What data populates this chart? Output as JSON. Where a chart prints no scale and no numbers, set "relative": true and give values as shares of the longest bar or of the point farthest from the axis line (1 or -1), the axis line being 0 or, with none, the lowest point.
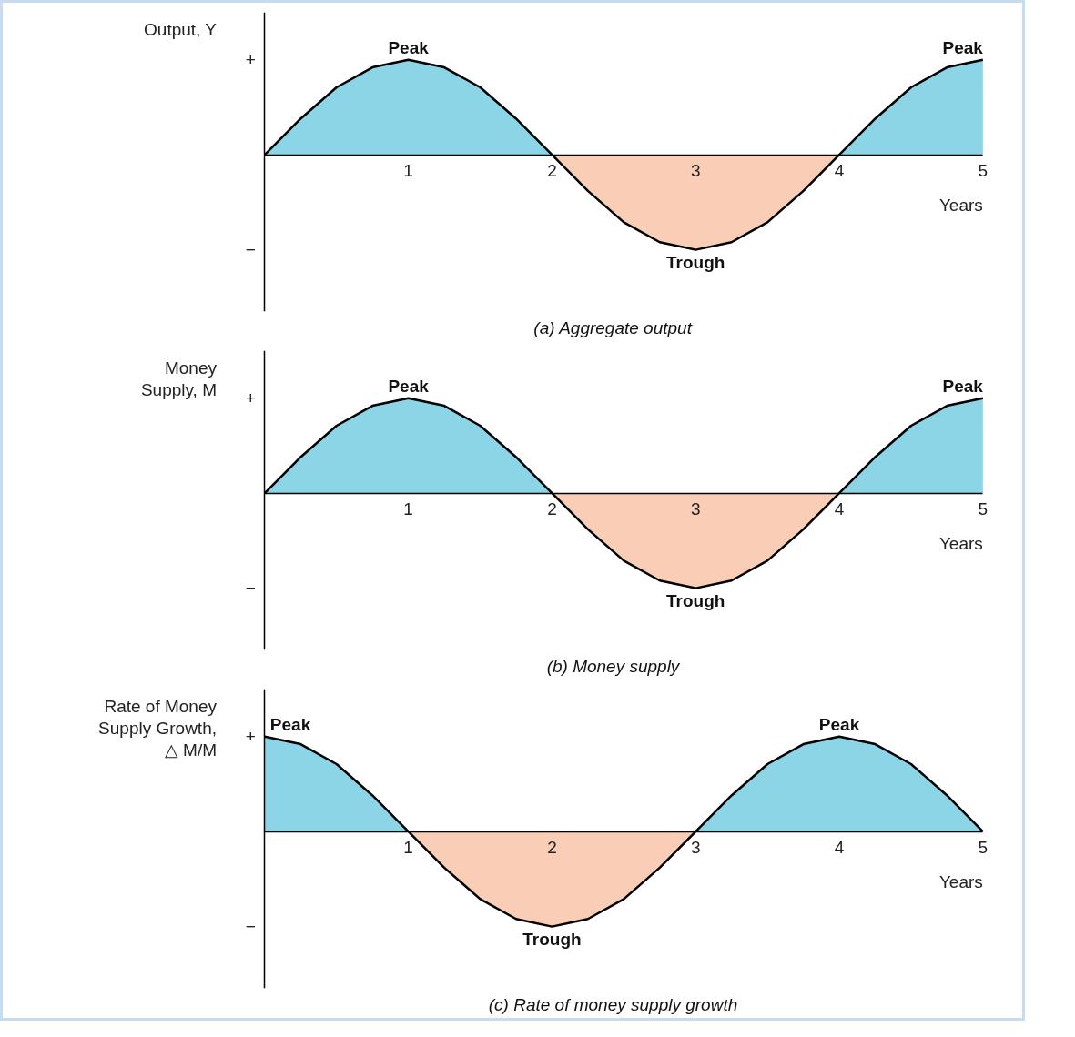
{
  "chart_data": [
    {
      "type": "area",
      "relative": true,
      "title": "(a) Aggregate output",
      "ylabel": "Output, Y",
      "xlabel": "Years",
      "x": [
        0,
        0.25,
        0.5,
        0.75,
        1,
        1.25,
        1.5,
        1.75,
        2,
        2.25,
        2.5,
        2.75,
        3,
        3.25,
        3.5,
        3.75,
        4,
        4.25,
        4.5,
        4.75,
        5
      ],
      "xlim": [
        0,
        5
      ],
      "xticks": [
        1,
        2,
        3,
        4,
        5
      ],
      "grid": false,
      "series": [
        {
          "color": "#8cd5e6",
          "values": [
            0,
            0.38,
            0.71,
            0.92,
            1,
            0.92,
            0.71,
            0.38,
            0,
            null,
            null,
            null,
            null,
            null,
            null,
            null,
            0,
            0.38,
            0.71,
            0.92,
            1
          ]
        },
        {
          "color": "#f9cdb6",
          "values": [
            null,
            null,
            null,
            null,
            null,
            null,
            null,
            null,
            0,
            -0.38,
            -0.71,
            -0.92,
            -1,
            -0.92,
            -0.71,
            -0.38,
            0,
            null,
            null,
            null,
            null
          ]
        },
        {
          "type": "line",
          "color": "#000000",
          "values": [
            0,
            0.38,
            0.71,
            0.92,
            1,
            0.92,
            0.71,
            0.38,
            0,
            -0.38,
            -0.71,
            -0.92,
            -1,
            -0.92,
            -0.71,
            -0.38,
            0,
            0.38,
            0.71,
            0.92,
            1
          ]
        }
      ],
      "annotations": [
        "+",
        "−",
        {
          "text": "Peak",
          "x": 1,
          "y": 1
        },
        {
          "text": "Peak",
          "x": 5,
          "y": 1
        },
        {
          "text": "Trough",
          "x": 3,
          "y": -1
        }
      ]
    },
    {
      "type": "area",
      "relative": true,
      "title": "(b) Money supply",
      "ylabel": "Money\nSupply, M",
      "xlabel": "Years",
      "x": [
        0,
        0.25,
        0.5,
        0.75,
        1,
        1.25,
        1.5,
        1.75,
        2,
        2.25,
        2.5,
        2.75,
        3,
        3.25,
        3.5,
        3.75,
        4,
        4.25,
        4.5,
        4.75,
        5
      ],
      "xlim": [
        0,
        5
      ],
      "xticks": [
        1,
        2,
        3,
        4,
        5
      ],
      "grid": false,
      "series": [
        {
          "color": "#8cd5e6",
          "values": [
            0,
            0.38,
            0.71,
            0.92,
            1,
            0.92,
            0.71,
            0.38,
            0,
            null,
            null,
            null,
            null,
            null,
            null,
            null,
            0,
            0.38,
            0.71,
            0.92,
            1
          ]
        },
        {
          "color": "#f9cdb6",
          "values": [
            null,
            null,
            null,
            null,
            null,
            null,
            null,
            null,
            0,
            -0.38,
            -0.71,
            -0.92,
            -1,
            -0.92,
            -0.71,
            -0.38,
            0,
            null,
            null,
            null,
            null
          ]
        },
        {
          "type": "line",
          "color": "#000000",
          "values": [
            0,
            0.38,
            0.71,
            0.92,
            1,
            0.92,
            0.71,
            0.38,
            0,
            -0.38,
            -0.71,
            -0.92,
            -1,
            -0.92,
            -0.71,
            -0.38,
            0,
            0.38,
            0.71,
            0.92,
            1
          ]
        }
      ],
      "annotations": [
        "+",
        "−",
        {
          "text": "Peak",
          "x": 1,
          "y": 1
        },
        {
          "text": "Peak",
          "x": 5,
          "y": 1
        },
        {
          "text": "Trough",
          "x": 3,
          "y": -1
        }
      ]
    },
    {
      "type": "area",
      "relative": true,
      "title": "(c) Rate of money supply growth",
      "ylabel": "Rate of Money\nSupply Growth,\n△ M/M",
      "xlabel": "Years",
      "x": [
        0,
        0.25,
        0.5,
        0.75,
        1,
        1.25,
        1.5,
        1.75,
        2,
        2.25,
        2.5,
        2.75,
        3,
        3.25,
        3.5,
        3.75,
        4,
        4.25,
        4.5,
        4.75,
        5
      ],
      "xlim": [
        0,
        5
      ],
      "xticks": [
        1,
        2,
        3,
        4,
        5
      ],
      "grid": false,
      "series": [
        {
          "color": "#8cd5e6",
          "values": [
            1,
            0.92,
            0.71,
            0.38,
            0,
            null,
            null,
            null,
            null,
            null,
            null,
            null,
            0,
            0.38,
            0.71,
            0.92,
            1,
            0.92,
            0.71,
            0.38,
            0
          ]
        },
        {
          "color": "#f9cdb6",
          "values": [
            null,
            null,
            null,
            null,
            0,
            -0.38,
            -0.71,
            -0.92,
            -1,
            -0.92,
            -0.71,
            -0.38,
            0,
            null,
            null,
            null,
            null,
            null,
            null,
            null,
            null
          ]
        },
        {
          "type": "line",
          "color": "#000000",
          "values": [
            1,
            0.92,
            0.71,
            0.38,
            0,
            -0.38,
            -0.71,
            -0.92,
            -1,
            -0.92,
            -0.71,
            -0.38,
            0,
            0.38,
            0.71,
            0.92,
            1,
            0.92,
            0.71,
            0.38,
            0
          ]
        }
      ],
      "annotations": [
        "+",
        "−",
        {
          "text": "Peak",
          "x": 0,
          "y": 1
        },
        {
          "text": "Peak",
          "x": 4,
          "y": 1
        },
        {
          "text": "Trough",
          "x": 2,
          "y": -1
        }
      ]
    }
  ]
}
